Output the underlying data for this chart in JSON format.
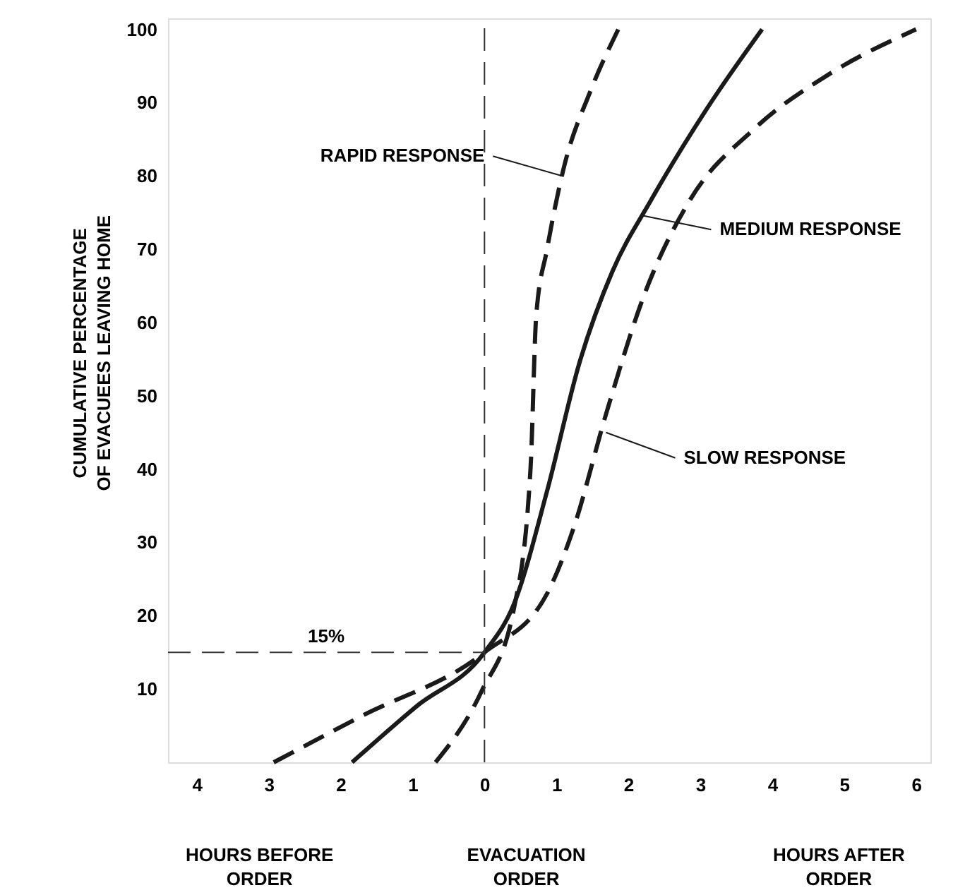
{
  "chart_data": {
    "type": "line",
    "ylabel": "CUMULATIVE PERCENTAGE OF EVACUEES LEAVING HOME",
    "xlim": [
      -4.4,
      6.2
    ],
    "ylim": [
      0,
      101.5
    ],
    "xticks": [
      {
        "value": -4,
        "label": "4"
      },
      {
        "value": -3,
        "label": "3"
      },
      {
        "value": -2,
        "label": "2"
      },
      {
        "value": -1,
        "label": "1"
      },
      0,
      1,
      2,
      3,
      4,
      5,
      6
    ],
    "yticks": [
      10,
      20,
      30,
      40,
      50,
      60,
      70,
      80,
      90,
      100
    ],
    "grid": false,
    "marker": "none",
    "series": [
      {
        "color": "#1a1a1a",
        "line_style": "dashed",
        "x": [
          -0.68,
          -0.04,
          0.41,
          0.64,
          0.72,
          0.87,
          1.1,
          1.47,
          1.86
        ],
        "values": [
          0,
          9.7,
          21,
          40,
          61,
          70,
          81,
          91.5,
          100
        ]
      },
      {
        "color": "#1a1a1a",
        "line_style": "solid",
        "x": [
          -1.84,
          -0.95,
          0,
          0.41,
          0.87,
          1.32,
          1.78,
          2.31,
          3.08,
          3.86
        ],
        "values": [
          0,
          7.6,
          15,
          21.6,
          37,
          54.5,
          67,
          76.6,
          89,
          100
        ]
      },
      {
        "color": "#1a1a1a",
        "line_style": "dashed",
        "x": [
          -2.93,
          -1.71,
          0,
          0.87,
          1.24,
          1.69,
          2.23,
          2.85,
          3.76,
          4.81,
          6.0
        ],
        "values": [
          0,
          6.3,
          15,
          23,
          32,
          47.5,
          64,
          76.6,
          86.5,
          94,
          100
        ]
      }
    ],
    "ref_lines": [
      {
        "axis": "x",
        "value": 0,
        "line_style": "dashed"
      },
      {
        "axis": "y",
        "value": 15,
        "label": "15%",
        "line_style": "dashed"
      }
    ],
    "annotations": [
      {
        "text": "RAPID RESPONSE",
        "x": 1.08,
        "y": 80
      },
      {
        "text": "MEDIUM RESPONSE",
        "x": 2.19,
        "y": 74.6
      },
      {
        "text": "SLOW RESPONSE",
        "x": 1.69,
        "y": 45
      },
      "HOURS BEFORE ORDER",
      "EVACUATION ORDER",
      "HOURS AFTER ORDER"
    ]
  }
}
